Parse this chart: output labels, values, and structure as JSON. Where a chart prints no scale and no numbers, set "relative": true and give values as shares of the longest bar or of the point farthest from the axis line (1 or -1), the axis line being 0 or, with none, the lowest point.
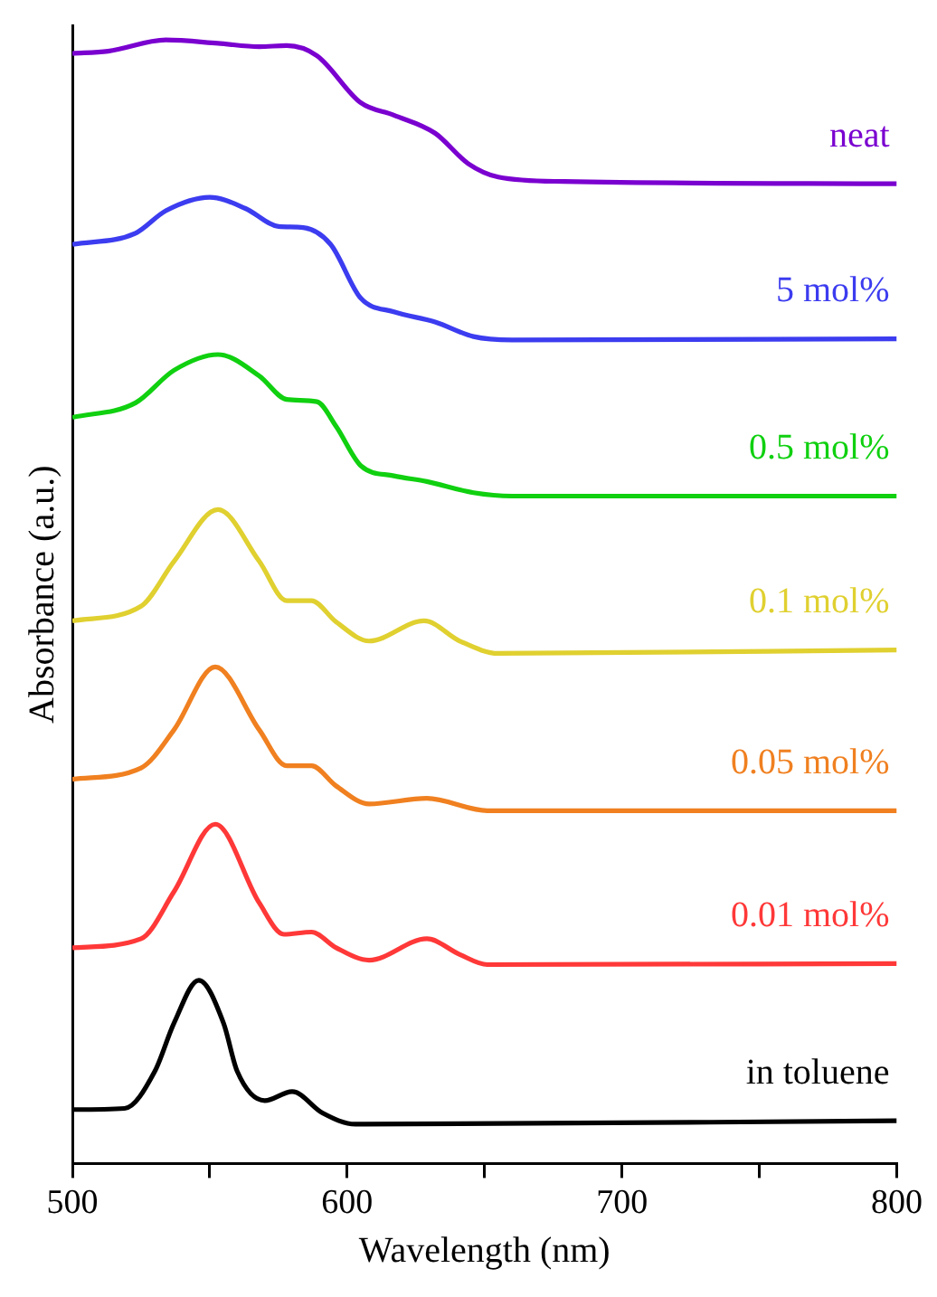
{
  "chart_data": {
    "type": "line",
    "relative": true,
    "xlabel": "Wavelength (nm)",
    "ylabel": "Absorbance (a.u.)",
    "xlim": [
      500,
      800
    ],
    "xticks": [
      500,
      {
        "value": 550,
        "label": null
      },
      600,
      {
        "value": 650,
        "label": null
      },
      700,
      {
        "value": 750,
        "label": null
      },
      800
    ],
    "grid": false,
    "legend": false,
    "series": [
      {
        "name": "neat",
        "color": "#7a00d0",
        "x": [
          500,
          513,
          534,
          553,
          568,
          578,
          589,
          605,
          617,
          632,
          644,
          655,
          679,
          800
        ],
        "values": [
          0.988,
          0.99,
          1.0,
          0.997,
          0.994,
          0.995,
          0.986,
          0.944,
          0.933,
          0.917,
          0.89,
          0.878,
          0.874,
          0.872
        ]
      },
      {
        "name": "5 mol%",
        "color": "#3c3cf0",
        "x": [
          500,
          523,
          534,
          550,
          563,
          575,
          584,
          594,
          605,
          617,
          632,
          646,
          660,
          800
        ],
        "values": [
          0.818,
          0.828,
          0.848,
          0.86,
          0.85,
          0.834,
          0.833,
          0.818,
          0.77,
          0.758,
          0.749,
          0.736,
          0.733,
          0.734
        ]
      },
      {
        "name": "0.5 mol%",
        "color": "#10d010",
        "x": [
          500,
          523,
          537,
          553,
          568,
          578,
          589,
          596,
          605,
          617,
          629,
          646,
          660,
          800
        ],
        "values": [
          0.664,
          0.677,
          0.706,
          0.72,
          0.701,
          0.68,
          0.678,
          0.656,
          0.621,
          0.612,
          0.607,
          0.597,
          0.594,
          0.594
        ]
      },
      {
        "name": "0.1 mol%",
        "color": "#e0d030",
        "x": [
          500,
          525,
          537,
          553,
          568,
          578,
          587,
          596,
          608,
          628,
          641,
          655,
          800
        ],
        "values": [
          0.483,
          0.496,
          0.536,
          0.582,
          0.536,
          0.501,
          0.501,
          0.482,
          0.465,
          0.483,
          0.465,
          0.454,
          0.457
        ]
      },
      {
        "name": "0.05 mol%",
        "color": "#f08020",
        "x": [
          500,
          525,
          537,
          552,
          568,
          578,
          587,
          596,
          608,
          629,
          651,
          800
        ],
        "values": [
          0.342,
          0.352,
          0.386,
          0.442,
          0.386,
          0.354,
          0.354,
          0.336,
          0.32,
          0.325,
          0.314,
          0.314
        ]
      },
      {
        "name": "0.01 mol%",
        "color": "#ff3838",
        "x": [
          500,
          525,
          537,
          552,
          568,
          577,
          587,
          596,
          608,
          629,
          641,
          651,
          800
        ],
        "values": [
          0.192,
          0.2,
          0.242,
          0.302,
          0.232,
          0.204,
          0.206,
          0.192,
          0.181,
          0.2,
          0.186,
          0.177,
          0.178
        ]
      },
      {
        "name": "in toluene",
        "color": "#000000",
        "x": [
          500,
          519,
          530,
          537,
          546,
          555,
          560,
          570,
          580,
          591,
          603,
          800
        ],
        "values": [
          0.048,
          0.049,
          0.082,
          0.125,
          0.163,
          0.125,
          0.082,
          0.056,
          0.064,
          0.045,
          0.035,
          0.038
        ]
      }
    ]
  }
}
